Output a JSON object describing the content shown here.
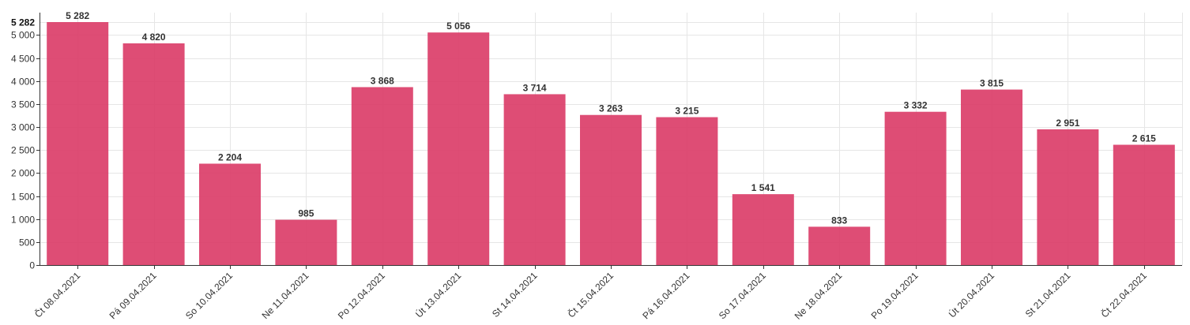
{
  "colors": {
    "bar": "#db3e69",
    "grid": "#e6e6e6",
    "axis": "#333333"
  },
  "chart_data": {
    "type": "bar",
    "categories": [
      "Čt 08.04.2021",
      "Pá 09.04.2021",
      "So 10.04.2021",
      "Ne 11.04.2021",
      "Po 12.04.2021",
      "Út 13.04.2021",
      "St 14.04.2021",
      "Čt 15.04.2021",
      "Pá 16.04.2021",
      "So 17.04.2021",
      "Ne 18.04.2021",
      "Po 19.04.2021",
      "Út 20.04.2021",
      "St 21.04.2021",
      "Čt 22.04.2021"
    ],
    "values": [
      5282,
      4820,
      2204,
      985,
      3868,
      5056,
      3714,
      3263,
      3215,
      1541,
      833,
      3332,
      3815,
      2951,
      2615
    ],
    "value_labels": [
      "5 282",
      "4 820",
      "2 204",
      "985",
      "3 868",
      "5 056",
      "3 714",
      "3 263",
      "3 215",
      "1 541",
      "833",
      "3 332",
      "3 815",
      "2 951",
      "2 615"
    ],
    "y_ticks": [
      0,
      500,
      1000,
      1500,
      2000,
      2500,
      3000,
      3500,
      4000,
      4500,
      5000
    ],
    "y_tick_labels": [
      "0",
      "500",
      "1 000",
      "1 500",
      "2 000",
      "2 500",
      "3 000",
      "3 500",
      "4 000",
      "4 500",
      "5 000"
    ],
    "y_max_label": "5 282",
    "ylim": [
      0,
      5282
    ],
    "grid": true,
    "title": "",
    "xlabel": "",
    "ylabel": ""
  }
}
